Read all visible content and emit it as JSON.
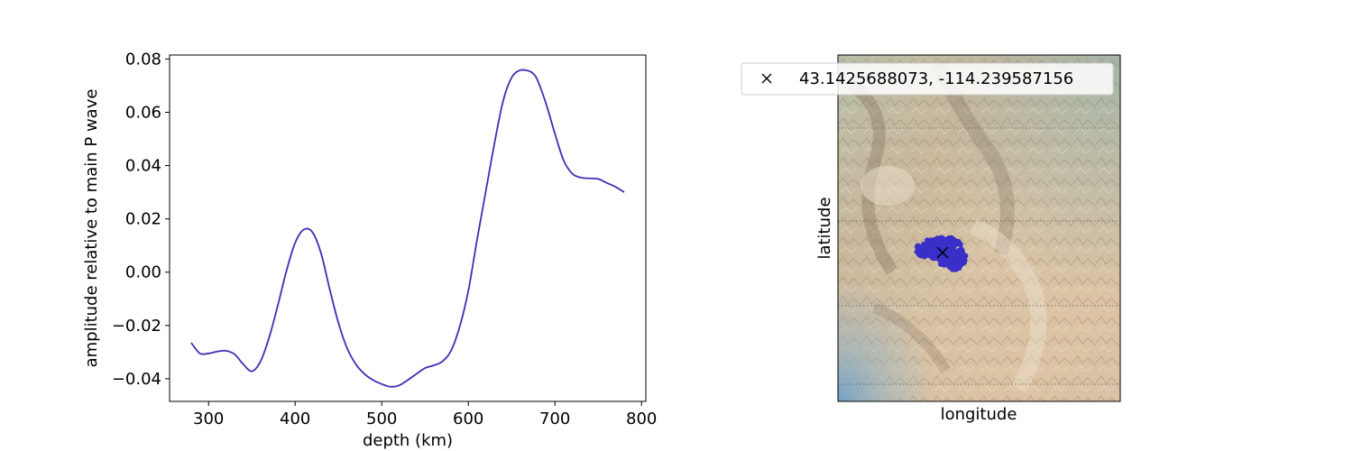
{
  "colors": {
    "line": "#3c2fb5",
    "cluster": "#3a2fc8",
    "marker": "#000000",
    "axes": "#000000"
  },
  "chart_data": [
    {
      "type": "line",
      "title": "",
      "xlabel": "depth (km)",
      "ylabel": "amplitude relative to main P wave",
      "xlim": [
        255,
        805
      ],
      "ylim": [
        -0.0485,
        0.0815
      ],
      "x_ticks": [
        300,
        400,
        500,
        600,
        700,
        800
      ],
      "x_tick_labels": [
        "300",
        "400",
        "500",
        "600",
        "700",
        "800"
      ],
      "y_ticks": [
        -0.04,
        -0.02,
        0.0,
        0.02,
        0.04,
        0.06,
        0.08
      ],
      "y_tick_labels": [
        "−0.04",
        "−0.02",
        "0.00",
        "0.02",
        "0.04",
        "0.06",
        "0.08"
      ],
      "grid": false,
      "series": [
        {
          "x": [
            280,
            290,
            300,
            310,
            320,
            330,
            340,
            350,
            360,
            370,
            380,
            390,
            400,
            410,
            420,
            430,
            440,
            450,
            460,
            470,
            480,
            490,
            500,
            510,
            520,
            530,
            540,
            550,
            560,
            570,
            580,
            590,
            600,
            610,
            620,
            630,
            640,
            650,
            660,
            670,
            675,
            680,
            690,
            700,
            710,
            720,
            730,
            740,
            750,
            760,
            770,
            780
          ],
          "y": [
            -0.0265,
            -0.0305,
            -0.0305,
            -0.0298,
            -0.0295,
            -0.0308,
            -0.0345,
            -0.0372,
            -0.0335,
            -0.0245,
            -0.0125,
            0.0005,
            0.011,
            0.016,
            0.015,
            0.007,
            -0.0065,
            -0.019,
            -0.0285,
            -0.0345,
            -0.0382,
            -0.0405,
            -0.042,
            -0.043,
            -0.0425,
            -0.0405,
            -0.0382,
            -0.036,
            -0.035,
            -0.0335,
            -0.0295,
            -0.0205,
            -0.007,
            0.012,
            0.03,
            0.048,
            0.064,
            0.073,
            0.0758,
            0.0755,
            0.0745,
            0.072,
            0.063,
            0.052,
            0.042,
            0.037,
            0.0355,
            0.0352,
            0.035,
            0.0335,
            0.032,
            0.03
          ]
        }
      ]
    },
    {
      "type": "scatter",
      "title": "",
      "xlabel": "longitude",
      "ylabel": "latitude",
      "x_ticks": [],
      "y_ticks": [],
      "legend": {
        "placement": "upper-left, overlapping the map",
        "entries": [
          {
            "marker": "x",
            "label": "43.1425688073, -114.239587156"
          }
        ]
      },
      "marked_point": {
        "lat": 43.1425688073,
        "lon": -114.239587156
      },
      "point_cluster_color": "#3a2fc8"
    }
  ]
}
